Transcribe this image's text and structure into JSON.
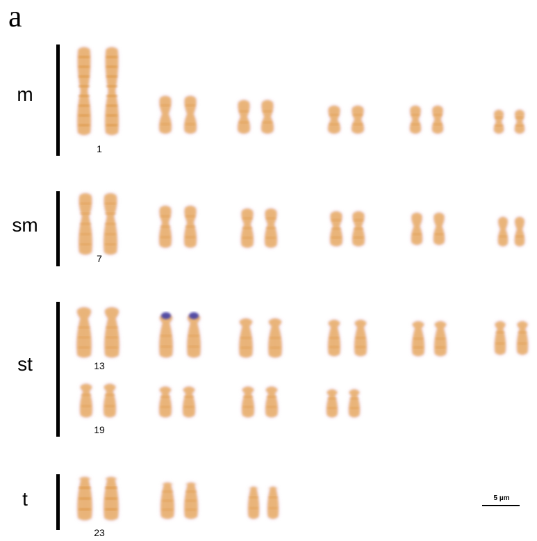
{
  "panel_label": "a",
  "groups": [
    {
      "label": "m",
      "pair_label": "1"
    },
    {
      "label": "sm",
      "pair_label": "7"
    },
    {
      "label": "st",
      "pair_labels": [
        "13",
        "19"
      ]
    },
    {
      "label": "t",
      "pair_label": "23"
    }
  ],
  "scale_bar": {
    "label": "5 µm"
  },
  "colors": {
    "chromosome_body": "#e9b068",
    "chromosome_halo": "#d9a0c8",
    "chromosome_band": "#d88a30",
    "nor_signal": "#3a3aa8"
  }
}
